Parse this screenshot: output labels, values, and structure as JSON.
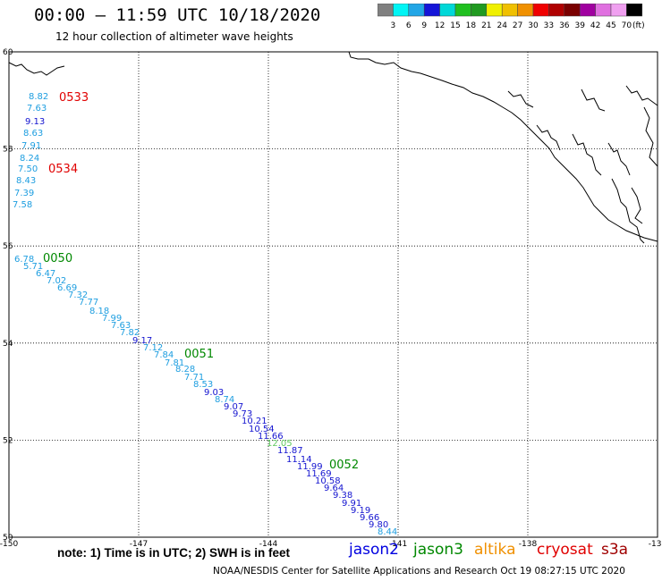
{
  "header": {
    "title": "00:00 – 11:59 UTC 10/18/2020",
    "subtitle": "12 hour collection of altimeter wave heights"
  },
  "color_scale": {
    "unit": "(ft)",
    "ticks": [
      "3",
      "6",
      "9",
      "12",
      "15",
      "18",
      "21",
      "24",
      "27",
      "30",
      "33",
      "36",
      "39",
      "42",
      "45",
      "70"
    ],
    "colors": [
      "#808080",
      "#00f5f5",
      "#22a6e6",
      "#1515d8",
      "#00d8d8",
      "#20c020",
      "#209a20",
      "#f0f000",
      "#f0c000",
      "#f09000",
      "#f00000",
      "#b00000",
      "#7a0000",
      "#a000a0",
      "#e070e0",
      "#f0a0f0",
      "#000000"
    ]
  },
  "map": {
    "lon_labels": [
      "-150",
      "-147",
      "-144",
      "-141",
      "-138",
      "-135"
    ],
    "lat_labels": [
      "60",
      "58",
      "56",
      "54",
      "52",
      "50"
    ],
    "pass_times": [
      {
        "label": "0533",
        "color": "#e00000"
      },
      {
        "label": "0534",
        "color": "#e00000"
      },
      {
        "label": "0050",
        "color": "#008800"
      },
      {
        "label": "0051",
        "color": "#008800"
      },
      {
        "label": "0052",
        "color": "#008800"
      }
    ],
    "wave_heights": [
      {
        "v": "8.82",
        "c": "#1e9ee0"
      },
      {
        "v": "7.63",
        "c": "#1e9ee0"
      },
      {
        "v": "9.13",
        "c": "#1515d0"
      },
      {
        "v": "8.63",
        "c": "#1e9ee0"
      },
      {
        "v": "7.91",
        "c": "#1e9ee0"
      },
      {
        "v": "8.24",
        "c": "#1e9ee0"
      },
      {
        "v": "7.50",
        "c": "#1e9ee0"
      },
      {
        "v": "8.43",
        "c": "#1e9ee0"
      },
      {
        "v": "7.39",
        "c": "#1e9ee0"
      },
      {
        "v": "7.58",
        "c": "#1e9ee0"
      },
      {
        "v": "6.78",
        "c": "#1e9ee0"
      },
      {
        "v": "5.71",
        "c": "#1e9ee0"
      },
      {
        "v": "6.47",
        "c": "#1e9ee0"
      },
      {
        "v": "7.02",
        "c": "#1e9ee0"
      },
      {
        "v": "6.69",
        "c": "#1e9ee0"
      },
      {
        "v": "7.32",
        "c": "#1e9ee0"
      },
      {
        "v": "7.77",
        "c": "#1e9ee0"
      },
      {
        "v": "8.18",
        "c": "#1e9ee0"
      },
      {
        "v": "7.99",
        "c": "#1e9ee0"
      },
      {
        "v": "7.63",
        "c": "#1e9ee0"
      },
      {
        "v": "7.82",
        "c": "#1e9ee0"
      },
      {
        "v": "9.17",
        "c": "#1515d0"
      },
      {
        "v": "7.12",
        "c": "#1e9ee0"
      },
      {
        "v": "7.84",
        "c": "#1e9ee0"
      },
      {
        "v": "7.81",
        "c": "#1e9ee0"
      },
      {
        "v": "8.28",
        "c": "#1e9ee0"
      },
      {
        "v": "7.71",
        "c": "#1e9ee0"
      },
      {
        "v": "8.53",
        "c": "#1e9ee0"
      },
      {
        "v": "9.03",
        "c": "#1515d0"
      },
      {
        "v": "8.74",
        "c": "#1e9ee0"
      },
      {
        "v": "9.07",
        "c": "#1515d0"
      },
      {
        "v": "9.73",
        "c": "#1515d0"
      },
      {
        "v": "10.21",
        "c": "#1515d0"
      },
      {
        "v": "10.54",
        "c": "#1515d0"
      },
      {
        "v": "11.66",
        "c": "#1515d0"
      },
      {
        "v": "12.05",
        "c": "#5ec85e"
      },
      {
        "v": "11.87",
        "c": "#1515d0"
      },
      {
        "v": "11.14",
        "c": "#1515d0"
      },
      {
        "v": "11.99",
        "c": "#1515d0"
      },
      {
        "v": "11.69",
        "c": "#1515d0"
      },
      {
        "v": "10.58",
        "c": "#1515d0"
      },
      {
        "v": "9.64",
        "c": "#1515d0"
      },
      {
        "v": "9.38",
        "c": "#1515d0"
      },
      {
        "v": "9.91",
        "c": "#1515d0"
      },
      {
        "v": "9.19",
        "c": "#1515d0"
      },
      {
        "v": "9.66",
        "c": "#1515d0"
      },
      {
        "v": "9.80",
        "c": "#1515d0"
      },
      {
        "v": "8.44",
        "c": "#1e9ee0"
      }
    ]
  },
  "footer": {
    "note": "note: 1) Time is in UTC; 2) SWH is in feet",
    "satellites": [
      {
        "name": "jason2",
        "color": "#0000e0"
      },
      {
        "name": "jason3",
        "color": "#008800"
      },
      {
        "name": "altika",
        "color": "#f09000"
      },
      {
        "name": "cryosat",
        "color": "#e00000"
      },
      {
        "name": "s3a",
        "color": "#a00000"
      }
    ],
    "credit": "NOAA/NESDIS Center for Satellite Applications and Research    Oct 19 08:27:15 UTC 2020"
  }
}
